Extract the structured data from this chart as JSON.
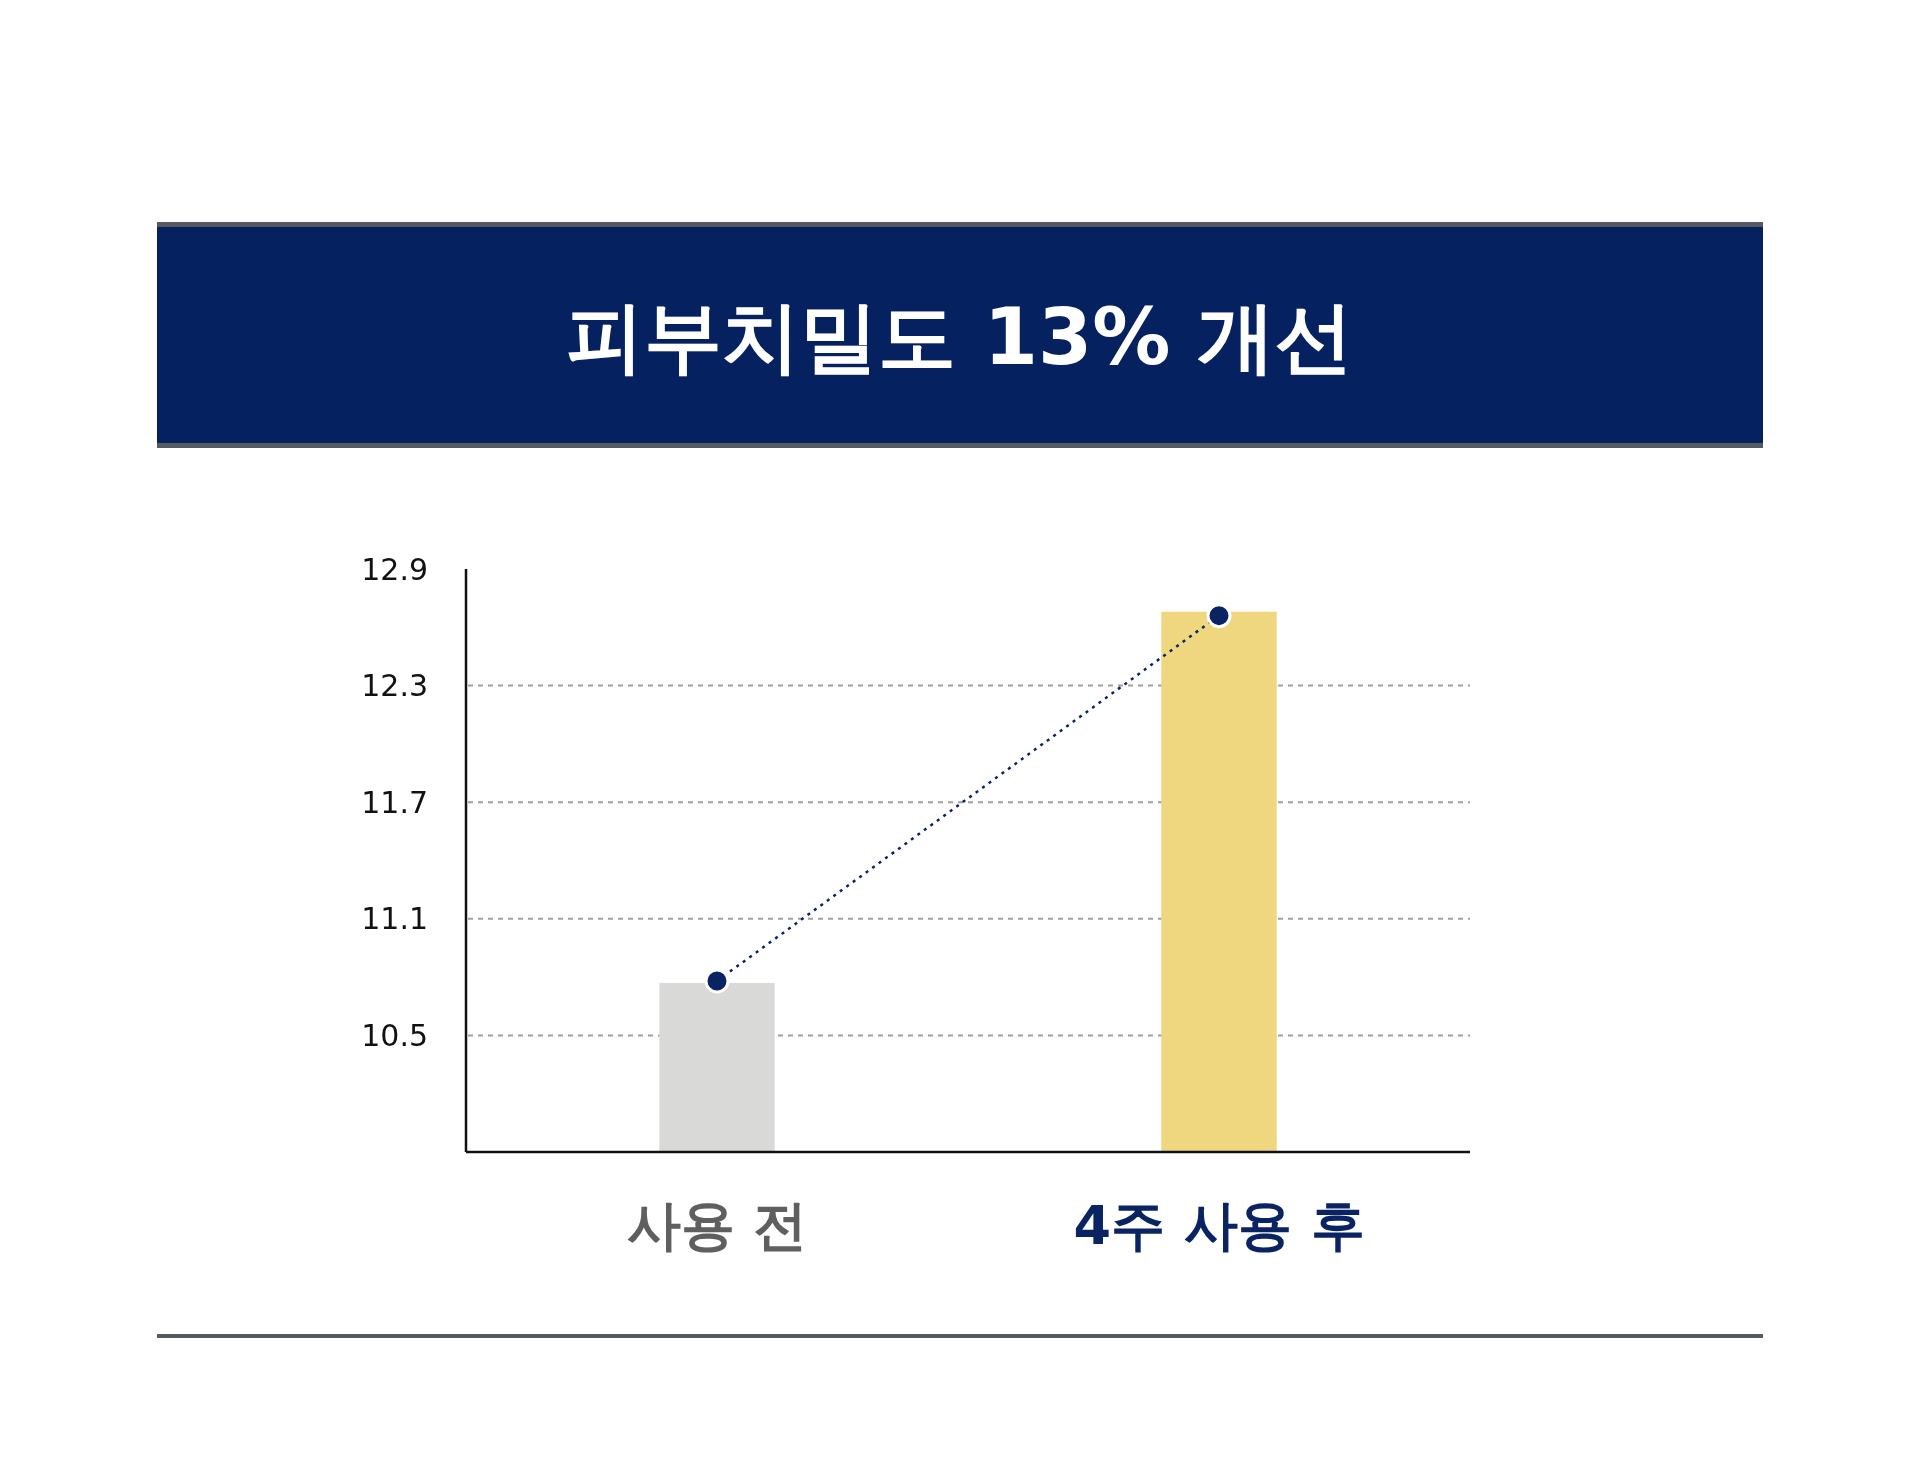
{
  "chart_data": {
    "type": "bar",
    "title": "피부치밀도 13% 개선",
    "categories": [
      "사용 전",
      "4주 사용 후"
    ],
    "series": [
      {
        "colors": [
          "#d9d9d8",
          "#efd77f"
        ],
        "values": [
          10.77,
          12.68
        ]
      },
      {
        "type": "line",
        "color": "#0a2463",
        "values": [
          10.78,
          12.66
        ],
        "marker": "circle",
        "line_style": "dotted"
      }
    ],
    "ylim": [
      9.9,
      12.9
    ],
    "yticks": [
      10.5,
      11.1,
      11.7,
      12.3,
      12.9
    ],
    "grid": "y"
  }
}
